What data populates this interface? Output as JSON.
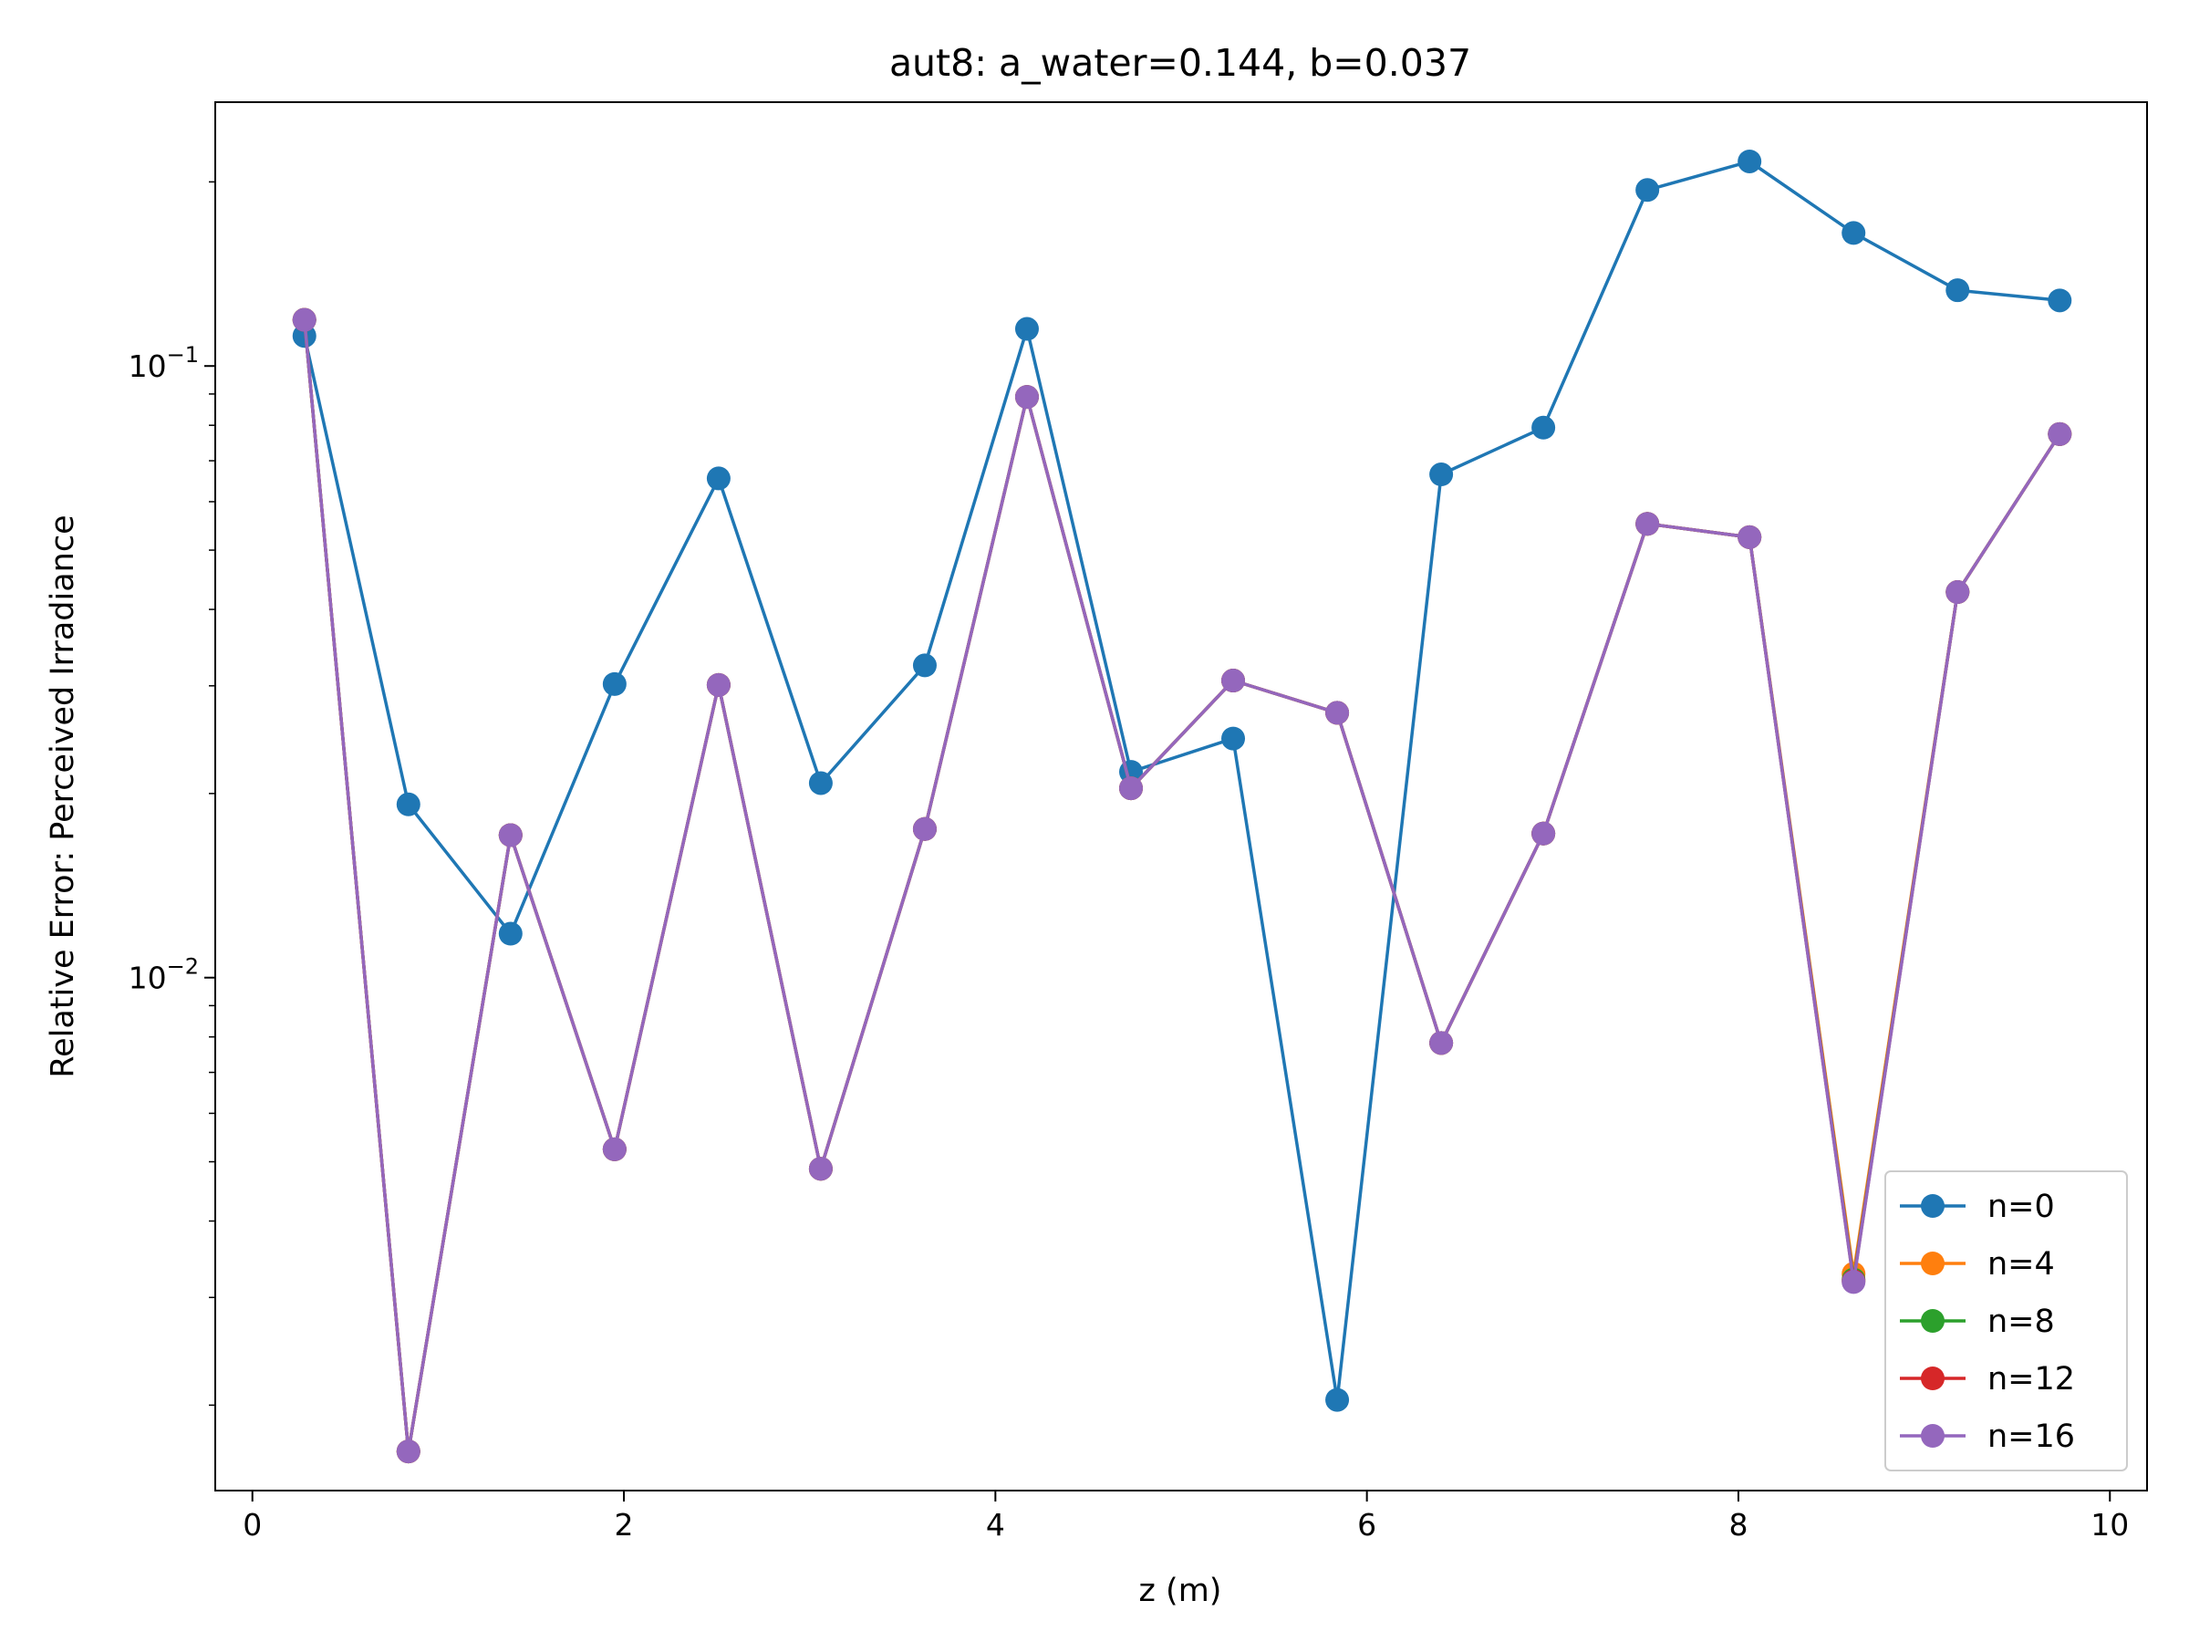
{
  "chart_data": {
    "type": "line",
    "title": "aut8: a_water=0.144, b=0.037",
    "xlabel": "z (m)",
    "ylabel": "Relative Error: Perceived Irradiance",
    "xlim": [
      -0.2,
      10.2
    ],
    "ylim": [
      0.00145,
      0.27
    ],
    "yscale": "log",
    "x_ticks": [
      0,
      2,
      4,
      6,
      8,
      10
    ],
    "x_tick_labels": [
      "0",
      "2",
      "4",
      "6",
      "8",
      "10"
    ],
    "y_major_ticks": [
      0.01,
      0.1
    ],
    "y_tick_labels": [
      {
        "base": "10",
        "exp": "−2"
      },
      {
        "base": "10",
        "exp": "−1"
      }
    ],
    "grid": false,
    "legend_position": "lower right",
    "x": [
      0.28,
      0.84,
      1.39,
      1.95,
      2.51,
      3.06,
      3.62,
      4.17,
      4.73,
      5.28,
      5.84,
      6.4,
      6.95,
      7.51,
      8.06,
      8.62,
      9.18,
      9.73
    ],
    "series": [
      {
        "name": "n=0",
        "color": "#1f77b4",
        "values": [
          0.112,
          0.0192,
          0.0118,
          0.0302,
          0.0655,
          0.0208,
          0.0324,
          0.115,
          0.0217,
          0.0246,
          0.00204,
          0.0665,
          0.0793,
          0.194,
          0.216,
          0.165,
          0.133,
          0.128
        ]
      },
      {
        "name": "n=4",
        "color": "#ff7f0e",
        "values": [
          0.119,
          0.00168,
          0.0171,
          0.00524,
          0.0301,
          0.00487,
          0.0175,
          0.089,
          0.0204,
          0.0306,
          0.0271,
          0.00782,
          0.0172,
          0.0552,
          0.0525,
          0.00328,
          0.0427,
          0.0774
        ]
      },
      {
        "name": "n=8",
        "color": "#2ca02c",
        "values": [
          0.119,
          0.00168,
          0.0171,
          0.00524,
          0.0301,
          0.00487,
          0.0175,
          0.089,
          0.0204,
          0.0306,
          0.0271,
          0.00782,
          0.0172,
          0.0552,
          0.0525,
          0.00321,
          0.0427,
          0.0774
        ]
      },
      {
        "name": "n=12",
        "color": "#d62728",
        "values": [
          0.119,
          0.00168,
          0.0171,
          0.00524,
          0.0301,
          0.00487,
          0.0175,
          0.089,
          0.0204,
          0.0306,
          0.0271,
          0.00782,
          0.0172,
          0.0552,
          0.0525,
          0.00319,
          0.0427,
          0.0774
        ]
      },
      {
        "name": "n=16",
        "color": "#9467bd",
        "values": [
          0.119,
          0.00168,
          0.0171,
          0.00524,
          0.0301,
          0.00487,
          0.0175,
          0.089,
          0.0204,
          0.0306,
          0.0271,
          0.00782,
          0.0172,
          0.0552,
          0.0525,
          0.00318,
          0.0427,
          0.0774
        ]
      }
    ]
  }
}
